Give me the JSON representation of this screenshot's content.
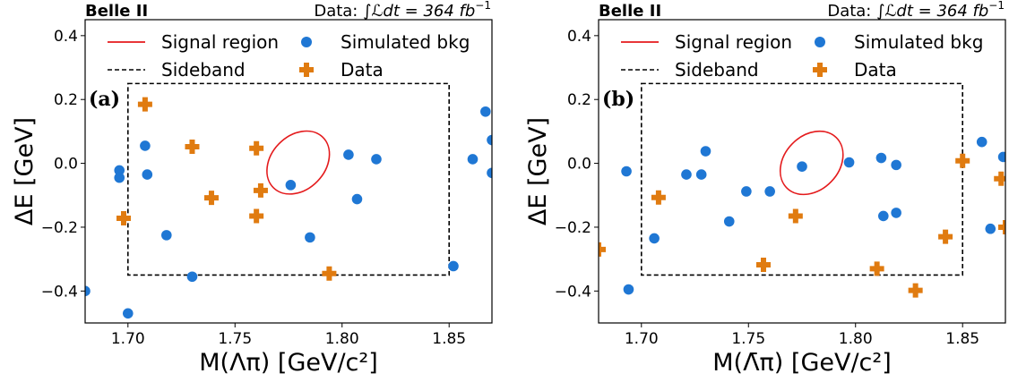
{
  "colors": {
    "signal_region": "#e41a1c",
    "sideband": "#000000",
    "simulated_bkg": "#1f77d4",
    "data": "#e07b10"
  },
  "chart_data": [
    {
      "panel_label": "(a)",
      "experiment": "Belle II",
      "lumi_text": "Data:",
      "lumi_formula": "∫ℒdt = 364 fb",
      "lumi_exp": "−1",
      "type": "scatter",
      "xlabel": "M(Λπ) [GeV/c²]",
      "ylabel": "ΔE [GeV]",
      "xlim": [
        1.68,
        1.87
      ],
      "ylim": [
        -0.5,
        0.45
      ],
      "xticks": [
        "1.70",
        "1.75",
        "1.80",
        "1.85"
      ],
      "yticks": [
        "−0.4",
        "−0.2",
        "0.0",
        "0.2",
        "0.4"
      ],
      "xtick_values": [
        1.7,
        1.75,
        1.8,
        1.85
      ],
      "ytick_values": [
        -0.4,
        -0.2,
        0.0,
        0.2,
        0.4
      ],
      "legend": {
        "signal_region": "Signal region",
        "sideband": "Sideband",
        "simulated_bkg": "Simulated bkg",
        "data": "Data"
      },
      "sideband_box": {
        "x": [
          1.7,
          1.85
        ],
        "y": [
          -0.35,
          0.25
        ]
      },
      "signal_ellipse": {
        "cx": 1.7795,
        "cy": 0.0025,
        "rx": 0.0165,
        "ry": 0.084,
        "angle_deg": 46
      },
      "simulated_bkg": [
        {
          "x": 1.68,
          "y": -0.4
        },
        {
          "x": 1.696,
          "y": -0.022
        },
        {
          "x": 1.696,
          "y": -0.045
        },
        {
          "x": 1.708,
          "y": 0.055
        },
        {
          "x": 1.709,
          "y": -0.035
        },
        {
          "x": 1.7,
          "y": -0.47
        },
        {
          "x": 1.718,
          "y": -0.225
        },
        {
          "x": 1.73,
          "y": -0.355
        },
        {
          "x": 1.776,
          "y": -0.068
        },
        {
          "x": 1.785,
          "y": -0.232
        },
        {
          "x": 1.803,
          "y": 0.027
        },
        {
          "x": 1.807,
          "y": -0.112
        },
        {
          "x": 1.816,
          "y": 0.013
        },
        {
          "x": 1.852,
          "y": -0.322
        },
        {
          "x": 1.861,
          "y": 0.013
        },
        {
          "x": 1.867,
          "y": 0.162
        },
        {
          "x": 1.87,
          "y": 0.073
        },
        {
          "x": 1.87,
          "y": -0.03
        }
      ],
      "data_points": [
        {
          "x": 1.698,
          "y": -0.172
        },
        {
          "x": 1.708,
          "y": 0.185
        },
        {
          "x": 1.73,
          "y": 0.052
        },
        {
          "x": 1.739,
          "y": -0.108
        },
        {
          "x": 1.76,
          "y": 0.047
        },
        {
          "x": 1.76,
          "y": -0.165
        },
        {
          "x": 1.762,
          "y": -0.085
        },
        {
          "x": 1.794,
          "y": -0.345
        }
      ]
    },
    {
      "panel_label": "(b)",
      "experiment": "Belle II",
      "lumi_text": "Data:",
      "lumi_formula": "∫ℒdt = 364 fb",
      "lumi_exp": "−1",
      "type": "scatter",
      "xlabel": "M(Λ̄π) [GeV/c²]",
      "ylabel": "ΔE [GeV]",
      "xlim": [
        1.68,
        1.87
      ],
      "ylim": [
        -0.5,
        0.45
      ],
      "xticks": [
        "1.70",
        "1.75",
        "1.80",
        "1.85"
      ],
      "yticks": [
        "−0.4",
        "−0.2",
        "0.0",
        "0.2",
        "0.4"
      ],
      "xtick_values": [
        1.7,
        1.75,
        1.8,
        1.85
      ],
      "ytick_values": [
        -0.4,
        -0.2,
        0.0,
        0.2,
        0.4
      ],
      "legend": {
        "signal_region": "Signal region",
        "sideband": "Sideband",
        "simulated_bkg": "Simulated bkg",
        "data": "Data"
      },
      "sideband_box": {
        "x": [
          1.7,
          1.85
        ],
        "y": [
          -0.35,
          0.25
        ]
      },
      "signal_ellipse": {
        "cx": 1.7795,
        "cy": 0.0015,
        "rx": 0.0165,
        "ry": 0.085,
        "angle_deg": 46
      },
      "simulated_bkg": [
        {
          "x": 1.693,
          "y": -0.025
        },
        {
          "x": 1.694,
          "y": -0.395
        },
        {
          "x": 1.706,
          "y": -0.235
        },
        {
          "x": 1.721,
          "y": -0.035
        },
        {
          "x": 1.728,
          "y": -0.035
        },
        {
          "x": 1.73,
          "y": 0.038
        },
        {
          "x": 1.741,
          "y": -0.182
        },
        {
          "x": 1.749,
          "y": -0.088
        },
        {
          "x": 1.76,
          "y": -0.088
        },
        {
          "x": 1.775,
          "y": -0.01
        },
        {
          "x": 1.797,
          "y": 0.003
        },
        {
          "x": 1.812,
          "y": 0.017
        },
        {
          "x": 1.813,
          "y": -0.165
        },
        {
          "x": 1.819,
          "y": -0.005
        },
        {
          "x": 1.819,
          "y": -0.155
        },
        {
          "x": 1.859,
          "y": 0.067
        },
        {
          "x": 1.863,
          "y": -0.205
        },
        {
          "x": 1.869,
          "y": 0.02
        }
      ],
      "data_points": [
        {
          "x": 1.68,
          "y": -0.27
        },
        {
          "x": 1.708,
          "y": -0.107
        },
        {
          "x": 1.757,
          "y": -0.318
        },
        {
          "x": 1.772,
          "y": -0.165
        },
        {
          "x": 1.81,
          "y": -0.33
        },
        {
          "x": 1.828,
          "y": -0.398
        },
        {
          "x": 1.842,
          "y": -0.23
        },
        {
          "x": 1.85,
          "y": 0.008
        },
        {
          "x": 1.868,
          "y": -0.048
        },
        {
          "x": 1.87,
          "y": -0.2
        }
      ]
    }
  ]
}
